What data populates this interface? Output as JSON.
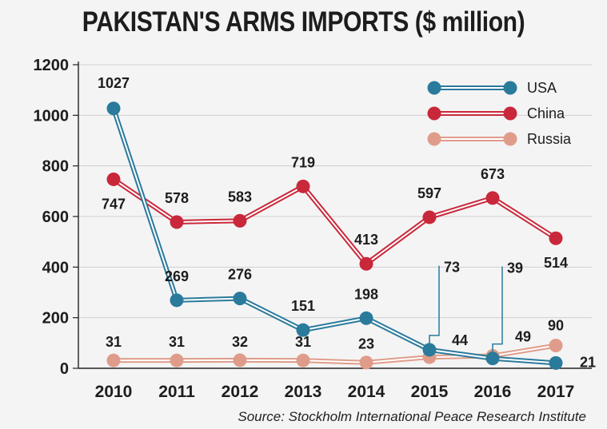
{
  "chart_data": {
    "type": "line",
    "title": "PAKISTAN'S ARMS IMPORTS ($ million)",
    "source": "Source: Stockholm International Peace Research Institute",
    "x": [
      "2010",
      "2011",
      "2012",
      "2013",
      "2014",
      "2015",
      "2016",
      "2017"
    ],
    "ylim": [
      0,
      1200
    ],
    "yticks": [
      "0",
      "200",
      "400",
      "600",
      "800",
      "1000",
      "1200"
    ],
    "grid": true,
    "legend": "top-right",
    "series": [
      {
        "name": "USA",
        "color": "#2a7a9c",
        "values": [
          1027,
          269,
          276,
          151,
          198,
          73,
          39,
          21
        ]
      },
      {
        "name": "China",
        "color": "#c9283a",
        "values": [
          747,
          578,
          583,
          719,
          413,
          597,
          673,
          514
        ]
      },
      {
        "name": "Russia",
        "color": "#e09c8a",
        "values": [
          31,
          31,
          32,
          31,
          23,
          44,
          49,
          90
        ]
      }
    ]
  }
}
